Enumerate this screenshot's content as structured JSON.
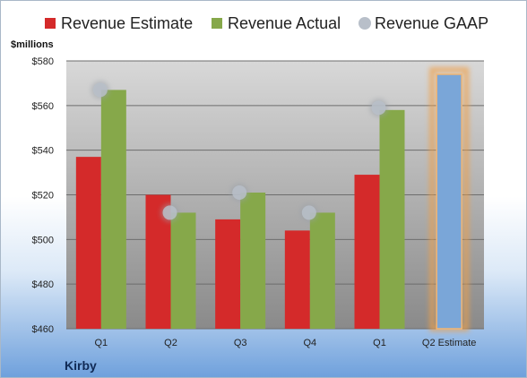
{
  "company": "Kirby",
  "unit_label": "$millions",
  "legend": [
    {
      "label": "Revenue Estimate",
      "color": "#d42a2a",
      "shape": "square"
    },
    {
      "label": "Revenue Actual",
      "color": "#86a84a",
      "shape": "square"
    },
    {
      "label": "Revenue GAAP",
      "color": "#b8bfc9",
      "shape": "circle"
    }
  ],
  "chart_data": {
    "type": "bar",
    "categories": [
      "Q1",
      "Q2",
      "Q3",
      "Q4",
      "Q1",
      "Q2 Estimate"
    ],
    "series": [
      {
        "name": "Revenue Estimate",
        "values": [
          537,
          520,
          509,
          504,
          529,
          null
        ],
        "color": "#d42a2a"
      },
      {
        "name": "Revenue Actual",
        "values": [
          567,
          512,
          521,
          512,
          558,
          null
        ],
        "color": "#86a84a"
      },
      {
        "name": "Revenue GAAP",
        "values": [
          567,
          512,
          521,
          512,
          559,
          null
        ],
        "color": "#b8bfc9"
      },
      {
        "name": "Q2 Estimate",
        "values": [
          null,
          null,
          null,
          null,
          null,
          574
        ],
        "color": "#7aa6d8"
      }
    ],
    "ylim": [
      460,
      580
    ],
    "yticks": [
      "$460",
      "$480",
      "$500",
      "$520",
      "$540",
      "$560",
      "$580"
    ],
    "ytick_values": [
      460,
      480,
      500,
      520,
      540,
      560,
      580
    ],
    "grid": true,
    "legend_position": "top"
  }
}
